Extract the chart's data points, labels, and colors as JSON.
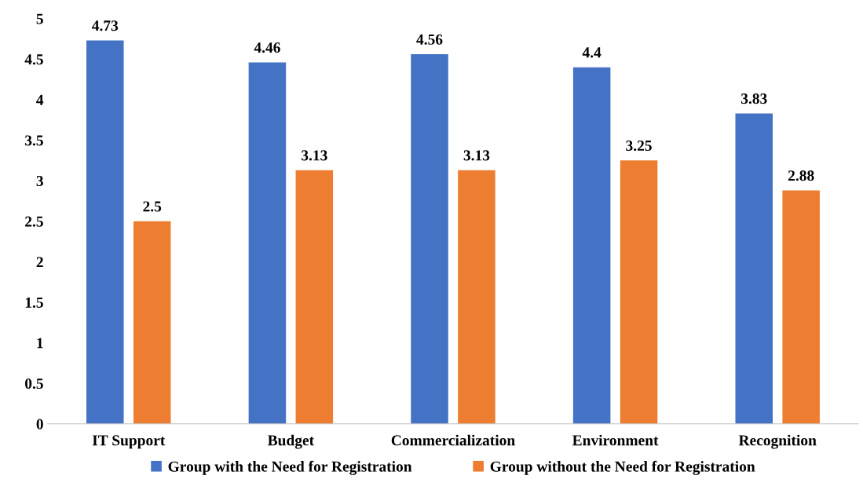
{
  "chart_data": {
    "type": "bar",
    "categories": [
      "IT Support",
      "Budget",
      "Commercialization",
      "Environment",
      "Recognition"
    ],
    "series": [
      {
        "name": "Group with the Need for Registration",
        "color": "#4472c4",
        "values": [
          4.73,
          4.46,
          4.56,
          4.4,
          3.83
        ]
      },
      {
        "name": "Group without the Need for Registration",
        "color": "#ed7d31",
        "values": [
          2.5,
          3.13,
          3.13,
          3.25,
          2.88
        ]
      }
    ],
    "ylim": [
      0,
      5
    ],
    "yticks": [
      0,
      0.5,
      1,
      1.5,
      2,
      2.5,
      3,
      3.5,
      4,
      4.5,
      5
    ],
    "grid": false,
    "legend": "bottom",
    "data_labels": true
  }
}
